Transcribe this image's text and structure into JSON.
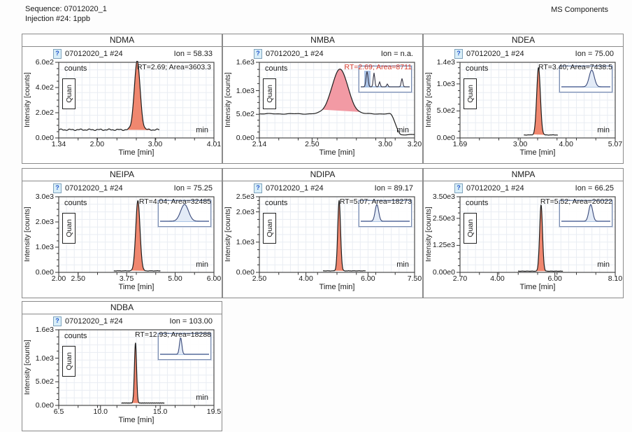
{
  "page": {
    "sequence_label": "Sequence: 07012020_1",
    "injection_label": "Injection #24: 1ppb",
    "header_right": "MS Components",
    "injection_icon_glyph": "?"
  },
  "colors": {
    "trace": "#1e1e1e",
    "grid": "#e9edf3",
    "plot_border": "#4a4a4a",
    "annotation_black": "#1a1a1a",
    "annotation_red": "#d93a2b",
    "inset_trace": "#3a4a7a",
    "inset_fill": "#e3ebf7",
    "inset_baseline": "#8fb0dc",
    "inset_highlight": "#9cb8e2"
  },
  "chart_data": [
    {
      "type": "area",
      "title": "NDMA",
      "injection_label": "07012020_1 #24",
      "ion_label": "Ion = 58.33",
      "annotation": "RT=2.69; Area=3603.3",
      "annotation_color": "#1a1a1a",
      "units_label": "counts",
      "quan_label": "Quan",
      "min_label": "min",
      "xlabel": "Time [min]",
      "ylabel": "Intensity [counts]",
      "x_range": [
        1.34,
        4.01
      ],
      "x_ticks": [
        {
          "v": 1.34,
          "label": "1.34"
        },
        {
          "v": 2.0,
          "label": "2.00"
        },
        {
          "v": 3.0,
          "label": "3.00"
        },
        {
          "v": 4.01,
          "label": "4.01"
        }
      ],
      "y_max": 600,
      "y_ticks": [
        {
          "v": 0,
          "label": "0.0e0"
        },
        {
          "v": 200,
          "label": "2.0e2"
        },
        {
          "v": 400,
          "label": "4.0e2"
        },
        {
          "v": 600,
          "label": "6.0e2"
        }
      ],
      "peak": {
        "rt": 2.69,
        "apex": 545,
        "sigma": 0.05,
        "baseline": 65,
        "integration": [
          2.5,
          3.0
        ]
      },
      "trace": {
        "start": 1.34,
        "end": 3.07,
        "noise": 8,
        "drop_at": null,
        "drop_to": null
      },
      "fill_color": "#f0876f",
      "inset": {
        "variant": "none"
      }
    },
    {
      "type": "area",
      "title": "NMBA",
      "injection_label": "07012020_1 #24",
      "ion_label": "Ion = n.a.",
      "annotation": "RT=2.69; Area=8711",
      "annotation_color": "#d93a2b",
      "units_label": "counts",
      "quan_label": "Quan",
      "min_label": "min",
      "xlabel": "Time [min]",
      "ylabel": "Intensity [counts]",
      "x_range": [
        2.14,
        3.2
      ],
      "x_ticks": [
        {
          "v": 2.14,
          "label": "2.14"
        },
        {
          "v": 2.5,
          "label": "2.50"
        },
        {
          "v": 3.0,
          "label": "3.00"
        },
        {
          "v": 3.2,
          "label": "3.20"
        }
      ],
      "y_max": 1600,
      "y_ticks": [
        {
          "v": 0,
          "label": "0.0e0"
        },
        {
          "v": 500,
          "label": "5.0e2"
        },
        {
          "v": 1000,
          "label": "1.0e3"
        },
        {
          "v": 1600,
          "label": "1.6e3"
        }
      ],
      "peak": {
        "rt": 2.69,
        "apex": 940,
        "sigma": 0.055,
        "baseline": 510,
        "integration": [
          2.57,
          2.83
        ]
      },
      "trace": {
        "start": 2.14,
        "end": 3.2,
        "noise": 10,
        "drop_at": 3.03,
        "drop_to": 70
      },
      "fill_color": "#f29aa4",
      "inset": {
        "variant": "multi"
      }
    },
    {
      "type": "area",
      "title": "NDEA",
      "injection_label": "07012020_1 #24",
      "ion_label": "Ion = 75.00",
      "annotation": "RT=3.40; Area=7438.5",
      "annotation_color": "#1a1a1a",
      "units_label": "counts",
      "quan_label": "Quan",
      "min_label": "min",
      "xlabel": "Time [min]",
      "ylabel": "Intensity [counts]",
      "x_range": [
        1.69,
        5.07
      ],
      "x_ticks": [
        {
          "v": 1.69,
          "label": "1.69"
        },
        {
          "v": 3.0,
          "label": "3.00"
        },
        {
          "v": 4.0,
          "label": "4.00"
        },
        {
          "v": 5.07,
          "label": "5.07"
        }
      ],
      "y_max": 1400,
      "y_ticks": [
        {
          "v": 0,
          "label": "0.0e0"
        },
        {
          "v": 500,
          "label": "5.0e2"
        },
        {
          "v": 1000,
          "label": "1.0e3"
        },
        {
          "v": 1400,
          "label": "1.4e3"
        }
      ],
      "peak": {
        "rt": 3.4,
        "apex": 1245,
        "sigma": 0.04,
        "baseline": 55,
        "integration": [
          3.28,
          3.55
        ]
      },
      "trace": {
        "start": 3.08,
        "end": 3.82,
        "noise": 4,
        "drop_at": null,
        "drop_to": null
      },
      "fill_color": "#f0876f",
      "inset": {
        "variant": "single",
        "center": 0.62,
        "width": 0.13
      }
    },
    {
      "type": "area",
      "title": "NEIPA",
      "injection_label": "07012020_1 #24",
      "ion_label": "Ion = 75.25",
      "annotation": "RT=4.04; Area=32485",
      "annotation_color": "#1a1a1a",
      "units_label": "counts",
      "quan_label": "Quan",
      "min_label": "min",
      "xlabel": "Time [min]",
      "ylabel": "Intensity [counts]",
      "x_range": [
        2.0,
        6.0
      ],
      "x_ticks": [
        {
          "v": 2.0,
          "label": "2.00"
        },
        {
          "v": 2.5,
          "label": "2.50"
        },
        {
          "v": 3.75,
          "label": "3.75"
        },
        {
          "v": 5.0,
          "label": "5.00"
        },
        {
          "v": 6.0,
          "label": "6.00"
        }
      ],
      "y_max": 3000,
      "y_ticks": [
        {
          "v": 0,
          "label": "0.0e0"
        },
        {
          "v": 1000,
          "label": "1.0e3"
        },
        {
          "v": 2000,
          "label": "2.0e3"
        },
        {
          "v": 3000,
          "label": "3.0e3"
        }
      ],
      "peak": {
        "rt": 4.04,
        "apex": 2780,
        "sigma": 0.055,
        "baseline": 60,
        "integration": [
          3.85,
          4.3
        ]
      },
      "trace": {
        "start": 3.42,
        "end": 4.62,
        "noise": 8,
        "drop_at": null,
        "drop_to": null
      },
      "fill_color": "#f0876f",
      "inset": {
        "variant": "single",
        "center": 0.5,
        "width": 0.2
      }
    },
    {
      "type": "area",
      "title": "NDIPA",
      "injection_label": "07012020_1 #24",
      "ion_label": "Ion = 89.17",
      "annotation": "RT=5.07; Area=18273",
      "annotation_color": "#1a1a1a",
      "units_label": "counts",
      "quan_label": "Quan",
      "min_label": "min",
      "xlabel": "Time [min]",
      "ylabel": "Intensity [counts]",
      "x_range": [
        2.5,
        7.5
      ],
      "x_ticks": [
        {
          "v": 2.5,
          "label": "2.50"
        },
        {
          "v": 4.0,
          "label": "4.00"
        },
        {
          "v": 6.0,
          "label": "6.00"
        },
        {
          "v": 7.5,
          "label": "7.50"
        }
      ],
      "y_max": 2500,
      "y_ticks": [
        {
          "v": 0,
          "label": "0.0e0"
        },
        {
          "v": 1000,
          "label": "1.0e3"
        },
        {
          "v": 2000,
          "label": "2.0e3"
        },
        {
          "v": 2500,
          "label": "2.5e3"
        }
      ],
      "peak": {
        "rt": 5.07,
        "apex": 2320,
        "sigma": 0.045,
        "baseline": 50,
        "integration": [
          4.9,
          5.32
        ]
      },
      "trace": {
        "start": 4.55,
        "end": 5.92,
        "noise": 6,
        "drop_at": null,
        "drop_to": null
      },
      "fill_color": "#f0876f",
      "inset": {
        "variant": "single",
        "center": 0.33,
        "width": 0.09
      }
    },
    {
      "type": "area",
      "title": "NMPA",
      "injection_label": "07012020_1 #24",
      "ion_label": "Ion = 66.25",
      "annotation": "RT=5.52; Area=26022",
      "annotation_color": "#1a1a1a",
      "units_label": "counts",
      "quan_label": "Quan",
      "min_label": "min",
      "xlabel": "Time [min]",
      "ylabel": "Intensity [counts]",
      "x_range": [
        2.7,
        8.1
      ],
      "x_ticks": [
        {
          "v": 2.7,
          "label": "2.70"
        },
        {
          "v": 4.0,
          "label": "4.00"
        },
        {
          "v": 6.0,
          "label": "6.00"
        },
        {
          "v": 8.1,
          "label": "8.10"
        }
      ],
      "y_max": 3500,
      "y_ticks": [
        {
          "v": 0,
          "label": "0.00e0"
        },
        {
          "v": 1250,
          "label": "1.25e3"
        },
        {
          "v": 2500,
          "label": "2.50e3"
        },
        {
          "v": 3500,
          "label": "3.50e3"
        }
      ],
      "peak": {
        "rt": 5.52,
        "apex": 3060,
        "sigma": 0.05,
        "baseline": 55,
        "integration": [
          5.3,
          5.85
        ]
      },
      "trace": {
        "start": 4.72,
        "end": 6.28,
        "noise": 8,
        "drop_at": null,
        "drop_to": null
      },
      "fill_color": "#f0876f",
      "inset": {
        "variant": "single",
        "center": 0.6,
        "width": 0.1
      }
    },
    {
      "type": "area",
      "title": "NDBA",
      "injection_label": "07012020_1 #24",
      "ion_label": "Ion = 103.00",
      "annotation": "RT=12.93; Area=18288",
      "annotation_color": "#1a1a1a",
      "units_label": "counts",
      "quan_label": "Quan",
      "min_label": "min",
      "xlabel": "Time [min]",
      "ylabel": "Intensity [counts]",
      "x_range": [
        6.5,
        19.5
      ],
      "x_ticks": [
        {
          "v": 6.5,
          "label": "6.5"
        },
        {
          "v": 10.0,
          "label": "10.0"
        },
        {
          "v": 15.0,
          "label": "15.0"
        },
        {
          "v": 19.5,
          "label": "19.5"
        }
      ],
      "y_max": 1600,
      "y_ticks": [
        {
          "v": 0,
          "label": "0.0e0"
        },
        {
          "v": 500,
          "label": "5.0e2"
        },
        {
          "v": 1000,
          "label": "1.0e3"
        },
        {
          "v": 1600,
          "label": "1.6e3"
        }
      ],
      "peak": {
        "rt": 12.93,
        "apex": 1270,
        "sigma": 0.09,
        "baseline": 50,
        "integration": [
          12.55,
          13.45
        ]
      },
      "trace": {
        "start": 11.75,
        "end": 15.35,
        "noise": 6,
        "drop_at": null,
        "drop_to": null
      },
      "fill_color": "#f0876f",
      "inset": {
        "variant": "single",
        "center": 0.42,
        "width": 0.06
      }
    }
  ]
}
